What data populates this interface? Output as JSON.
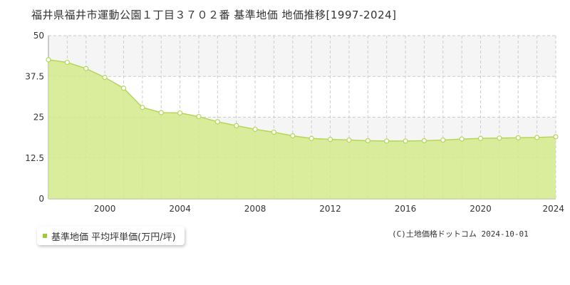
{
  "title": "福井県福井市運動公園１丁目３７０２番 基準地価 地価推移[1997-2024]",
  "legend": {
    "label": "基準地価 平均坪単価(万円/坪)"
  },
  "copyright": "(C)土地価格ドットコム 2024-10-01",
  "colors": {
    "fill": "#d4ea8c",
    "line": "#b5d656",
    "band": "#f5f5f5",
    "grid": "#cccccc",
    "marker_fill": "#ffffff",
    "marker_stroke": "#b5d656",
    "legend_swatch": "#9acd32"
  },
  "chart_data": {
    "type": "area",
    "x": [
      1997,
      1998,
      1999,
      2000,
      2001,
      2002,
      2003,
      2004,
      2005,
      2006,
      2007,
      2008,
      2009,
      2010,
      2011,
      2012,
      2013,
      2014,
      2015,
      2016,
      2017,
      2018,
      2019,
      2020,
      2021,
      2022,
      2023,
      2024
    ],
    "values": [
      42.6,
      41.8,
      39.9,
      37.2,
      33.9,
      28.0,
      26.4,
      26.3,
      25.2,
      23.6,
      22.4,
      21.3,
      20.4,
      19.3,
      18.5,
      18.2,
      18.0,
      17.8,
      17.7,
      17.7,
      17.8,
      18.0,
      18.3,
      18.5,
      18.6,
      18.7,
      18.8,
      19.0
    ],
    "xlim": [
      1997,
      2024
    ],
    "ylim": [
      0,
      50
    ],
    "x_ticks": [
      "2000",
      "2004",
      "2008",
      "2012",
      "2016",
      "2020",
      "2024"
    ],
    "y_ticks": [
      "0",
      "12.5",
      "25",
      "37.5",
      "50"
    ],
    "grid": true
  }
}
